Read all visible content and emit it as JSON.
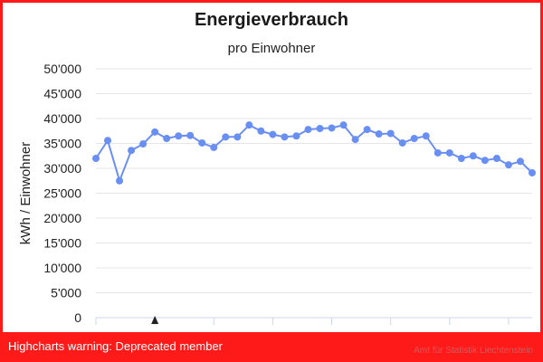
{
  "chart_data": {
    "type": "line",
    "title": "Energieverbrauch",
    "subtitle": "pro Einwohner",
    "ylabel": "kWh / Einwohner",
    "xlabel": "",
    "ylim": [
      0,
      50000
    ],
    "xlim": [
      1985,
      2022
    ],
    "yticks": [
      0,
      5000,
      10000,
      15000,
      20000,
      25000,
      30000,
      35000,
      40000,
      45000,
      50000
    ],
    "ytick_labels": [
      "0",
      "5'000",
      "10'000",
      "15'000",
      "20'000",
      "25'000",
      "30'000",
      "35'000",
      "40'000",
      "45'000",
      "50'000"
    ],
    "xticks": [
      1985,
      1990,
      1995,
      2000,
      2005,
      2010,
      2015,
      2020
    ],
    "grid": "horizontal",
    "series_color": "#6a8ff2",
    "series": [
      {
        "x": [
          1985,
          1986,
          1987,
          1988,
          1989,
          1990,
          1991,
          1992,
          1993,
          1994,
          1995,
          1996,
          1997,
          1998,
          1999,
          2000,
          2001,
          2002,
          2003,
          2004,
          2005,
          2006,
          2007,
          2008,
          2009,
          2010,
          2011,
          2012,
          2013,
          2014,
          2015,
          2016,
          2017,
          2018,
          2019,
          2020,
          2021,
          2022
        ],
        "values": [
          32000,
          35600,
          27500,
          33600,
          34900,
          37300,
          36000,
          36500,
          36600,
          35100,
          34200,
          36300,
          36300,
          38700,
          37500,
          36800,
          36300,
          36500,
          37800,
          38000,
          38100,
          38700,
          35800,
          37800,
          36900,
          37000,
          35100,
          36000,
          36500,
          33100,
          33100,
          32000,
          32500,
          31600,
          32000,
          30700,
          31400,
          29100
        ]
      }
    ],
    "annotation_marker_x": 1990
  },
  "warning": "Highcharts warning: Deprecated member",
  "credits": "Amt für Statistik Liechtenstein"
}
